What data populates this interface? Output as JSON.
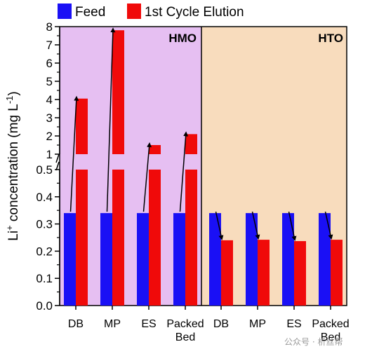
{
  "colors": {
    "feed": "#1a10f5",
    "elution": "#f00a0a",
    "hmo_bg": "#e6bff2",
    "hto_bg": "#f8dcbd",
    "arrow": "#000000"
  },
  "legend": {
    "feed_label": "Feed",
    "elution_label": "1st Cycle Elution",
    "position": "top-left"
  },
  "y_axis_label": {
    "prefix": "Li",
    "sup1": "+",
    "middle": " concentration (mg L",
    "sup2": "-1",
    "suffix": ")"
  },
  "watermark": "公众号 · 析丝帮",
  "chart_data": {
    "type": "bar",
    "grid": false,
    "y_axis": {
      "broken": true,
      "lower_range": [
        0.0,
        0.5
      ],
      "upper_range": [
        1,
        8
      ],
      "lower_ticks": [
        0.0,
        0.1,
        0.2,
        0.3,
        0.4,
        0.5
      ],
      "upper_ticks": [
        1,
        2,
        3,
        4,
        5,
        6,
        7,
        8
      ],
      "lower_tick_labels": [
        "0.0",
        "0.1",
        "0.2",
        "0.3",
        "0.4",
        "0.5"
      ],
      "upper_tick_labels": [
        "1",
        "2",
        "3",
        "4",
        "5",
        "6",
        "7",
        "8"
      ]
    },
    "panels": [
      {
        "label": "HMO",
        "categories": [
          "DB",
          "MP",
          "ES",
          "Packed Bed"
        ],
        "series": [
          {
            "name": "Feed",
            "values": [
              0.34,
              0.34,
              0.34,
              0.34
            ]
          },
          {
            "name": "1st Cycle Elution",
            "values": [
              4.05,
              7.8,
              1.5,
              2.1
            ]
          }
        ]
      },
      {
        "label": "HTO",
        "categories": [
          "DB",
          "MP",
          "ES",
          "Packed Bed"
        ],
        "series": [
          {
            "name": "Feed",
            "values": [
              0.34,
              0.34,
              0.34,
              0.34
            ]
          },
          {
            "name": "1st Cycle Elution",
            "values": [
              0.24,
              0.242,
              0.237,
              0.242
            ]
          }
        ]
      }
    ]
  }
}
